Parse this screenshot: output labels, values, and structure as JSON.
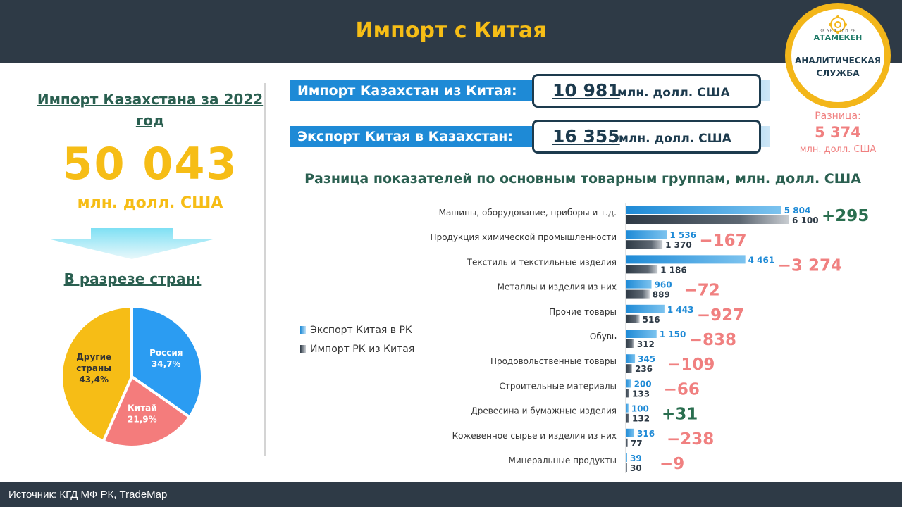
{
  "header": {
    "title": "Импорт с Китая"
  },
  "logo": {
    "small_text": "ҚР ҰКП  НПП РК",
    "brand": "АТАМЕКЕН",
    "line1": "АНАЛИТИЧЕСКАЯ",
    "line2": "СЛУЖБА"
  },
  "left": {
    "title": "Импорт Казахстана за 2022 год",
    "big_number": "50 043",
    "big_unit": "млн. долл. США",
    "countries_title": "В разрезе стран:"
  },
  "stats": {
    "import_label": "Импорт Казахстан из Китая:",
    "import_value": "10 981",
    "import_unit": "млн. долл. США",
    "export_label": "Экспорт Китая в Казахстан:",
    "export_value": "16 355",
    "export_unit": "млн. долл. США",
    "diff_label": "Разница:",
    "diff_value": "5 374",
    "diff_unit": "млн. долл. США"
  },
  "footer": {
    "source": "Источник: КГД МФ РК, TradeMap"
  },
  "colors": {
    "header_bg": "#2e3a46",
    "accent_yellow": "#f6bd16",
    "title_green": "#2a5f50",
    "export_blue": "#1e8ad6",
    "import_dark": "#2e3a46",
    "negative_red": "#f08080",
    "positive_green": "#2a6e4f",
    "pie_russia": "#2b9cf2",
    "pie_china": "#f47c7c",
    "pie_other": "#f6bd16"
  },
  "chart_data": [
    {
      "type": "pie",
      "slices": [
        {
          "label": "Россия",
          "value": 34.7,
          "display": "34,7%"
        },
        {
          "label": "Китай",
          "value": 21.9,
          "display": "21,9%"
        },
        {
          "label": "Другие страны",
          "value": 43.4,
          "display": "43,4%"
        }
      ]
    },
    {
      "type": "bar",
      "title": "Разница показателей по основным товарным группам, млн. долл. США",
      "categories": [
        "Машины, оборудование, приборы и т.д.",
        "Продукция химической промышленности",
        "Текстиль и текстильные изделия",
        "Металлы и изделия из них",
        "Прочие товары",
        "Обувь",
        "Продовольственные товары",
        "Строительные материалы",
        "Древесина и бумажные изделия",
        "Кожевенное сырье и изделия из них",
        "Минеральные продукты"
      ],
      "series": [
        {
          "name": "Экспорт Китая в РК",
          "values": [
            5804,
            1536,
            4461,
            960,
            1443,
            1150,
            345,
            200,
            100,
            316,
            39
          ],
          "labels": [
            "5 804",
            "1 536",
            "4 461",
            "960",
            "1 443",
            "1 150",
            "345",
            "200",
            "100",
            "316",
            "39"
          ]
        },
        {
          "name": "Импорт РК из Китая",
          "values": [
            6100,
            1370,
            1186,
            889,
            516,
            312,
            236,
            133,
            132,
            77,
            30
          ],
          "labels": [
            "6 100",
            "1 370",
            "1 186",
            "889",
            "516",
            "312",
            "236",
            "133",
            "132",
            "77",
            "30"
          ]
        }
      ],
      "differences": [
        295,
        -167,
        -3274,
        -72,
        -927,
        -838,
        -109,
        -66,
        31,
        -238,
        -9
      ],
      "difference_labels": [
        "+295",
        "−167",
        "−3 274",
        "−72",
        "−927",
        "−838",
        "−109",
        "−66",
        "+31",
        "−238",
        "−9"
      ],
      "legend_position": "left"
    }
  ]
}
